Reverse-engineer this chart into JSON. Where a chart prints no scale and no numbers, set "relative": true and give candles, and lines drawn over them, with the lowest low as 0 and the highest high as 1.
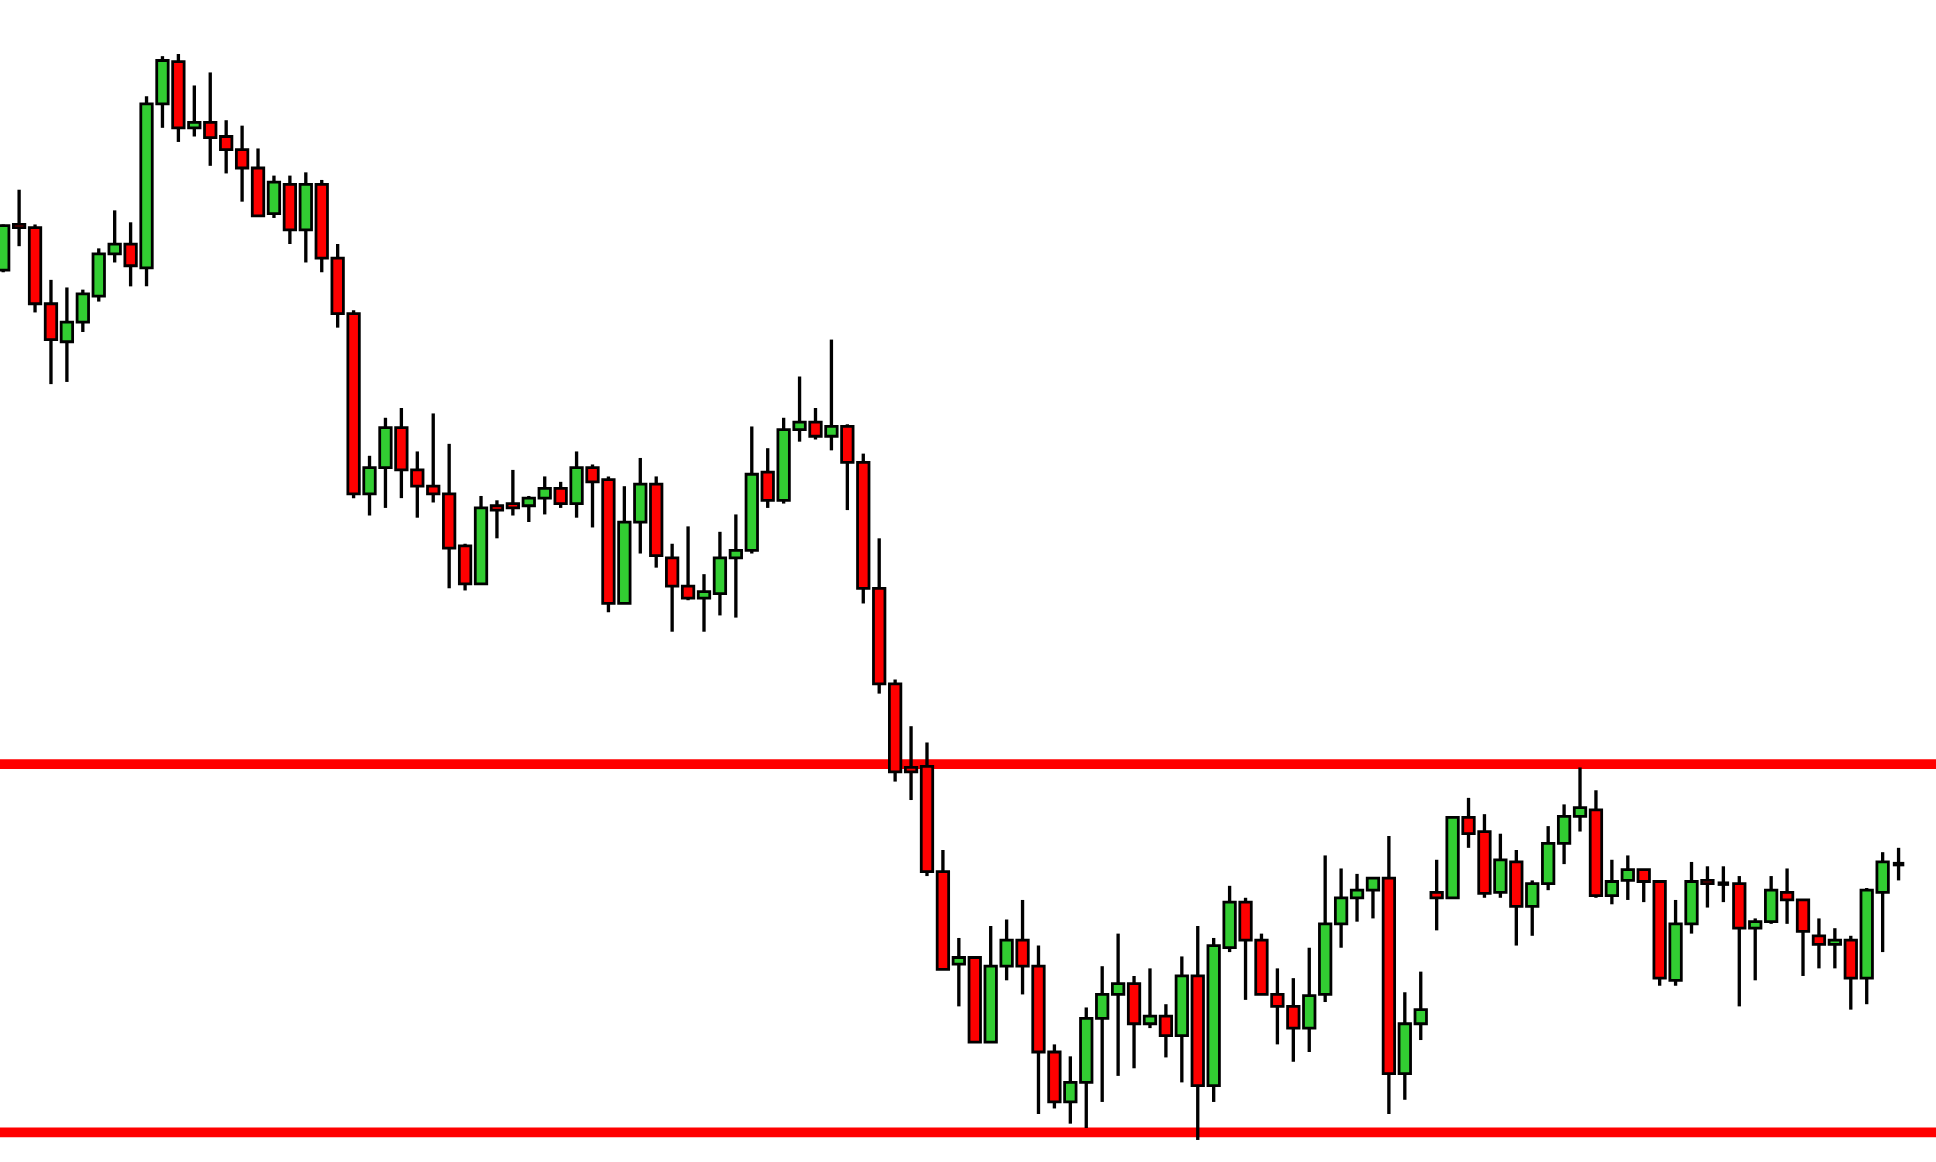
{
  "chart_data": {
    "type": "candlestick",
    "relative": true,
    "categories": [
      null,
      null,
      null,
      null,
      null,
      null,
      null,
      null,
      null,
      null,
      null,
      null,
      null,
      null,
      null,
      null,
      null,
      null,
      null,
      null,
      null,
      null,
      null,
      null,
      null,
      null,
      null,
      null,
      null,
      null,
      null,
      null,
      null,
      null,
      null,
      null,
      null,
      null,
      null,
      null,
      null,
      null,
      null,
      null,
      null,
      null,
      null,
      null,
      null,
      null,
      null,
      null,
      null,
      null,
      null,
      null,
      null,
      null,
      null,
      null,
      null,
      null,
      null,
      null,
      null,
      null,
      null,
      null,
      null,
      null,
      null,
      null,
      null,
      null,
      null,
      null,
      null,
      null,
      null,
      null,
      null,
      null,
      null,
      null,
      null,
      null,
      null,
      null,
      null,
      null,
      null,
      null,
      null,
      null,
      null,
      null,
      null,
      null,
      null,
      null,
      null,
      null,
      null,
      null,
      null,
      null,
      null,
      null,
      null,
      null,
      null,
      null,
      null,
      null,
      null,
      null,
      null,
      null,
      null,
      null
    ],
    "ohlc": [
      [
        0.801,
        0.843,
        0.799,
        0.842
      ],
      [
        0.843,
        0.875,
        0.823,
        0.84
      ],
      [
        0.84,
        0.843,
        0.762,
        0.77
      ],
      [
        0.77,
        0.792,
        0.696,
        0.737
      ],
      [
        0.735,
        0.785,
        0.698,
        0.753
      ],
      [
        0.753,
        0.783,
        0.744,
        0.779
      ],
      [
        0.777,
        0.821,
        0.772,
        0.816
      ],
      [
        0.816,
        0.856,
        0.808,
        0.825
      ],
      [
        0.825,
        0.845,
        0.786,
        0.805
      ],
      [
        0.803,
        0.961,
        0.786,
        0.954
      ],
      [
        0.954,
        0.998,
        0.932,
        0.994
      ],
      [
        0.993,
        1,
        0.919,
        0.932
      ],
      [
        0.932,
        0.971,
        0.924,
        0.937
      ],
      [
        0.937,
        0.983,
        0.897,
        0.923
      ],
      [
        0.924,
        0.939,
        0.89,
        0.912
      ],
      [
        0.912,
        0.934,
        0.864,
        0.895
      ],
      [
        0.895,
        0.913,
        0.851,
        0.851
      ],
      [
        0.853,
        0.888,
        0.849,
        0.882
      ],
      [
        0.88,
        0.888,
        0.825,
        0.838
      ],
      [
        0.838,
        0.891,
        0.808,
        0.88
      ],
      [
        0.88,
        0.884,
        0.799,
        0.812
      ],
      [
        0.812,
        0.825,
        0.748,
        0.761
      ],
      [
        0.761,
        0.764,
        0.591,
        0.595
      ],
      [
        0.595,
        0.63,
        0.575,
        0.619
      ],
      [
        0.619,
        0.665,
        0.582,
        0.656
      ],
      [
        0.656,
        0.674,
        0.591,
        0.617
      ],
      [
        0.617,
        0.634,
        0.573,
        0.602
      ],
      [
        0.602,
        0.669,
        0.587,
        0.595
      ],
      [
        0.595,
        0.641,
        0.508,
        0.545
      ],
      [
        0.547,
        0.549,
        0.506,
        0.512
      ],
      [
        0.512,
        0.593,
        0.512,
        0.582
      ],
      [
        0.584,
        0.589,
        0.554,
        0.58
      ],
      [
        0.586,
        0.617,
        0.575,
        0.582
      ],
      [
        0.584,
        0.593,
        0.569,
        0.591
      ],
      [
        0.591,
        0.611,
        0.576,
        0.6
      ],
      [
        0.6,
        0.606,
        0.582,
        0.586
      ],
      [
        0.586,
        0.634,
        0.573,
        0.619
      ],
      [
        0.619,
        0.622,
        0.564,
        0.606
      ],
      [
        0.608,
        0.611,
        0.486,
        0.494
      ],
      [
        0.494,
        0.602,
        0.494,
        0.569
      ],
      [
        0.569,
        0.628,
        0.54,
        0.604
      ],
      [
        0.604,
        0.611,
        0.527,
        0.538
      ],
      [
        0.536,
        0.549,
        0.468,
        0.51
      ],
      [
        0.51,
        0.565,
        0.497,
        0.499
      ],
      [
        0.499,
        0.521,
        0.468,
        0.505
      ],
      [
        0.503,
        0.56,
        0.483,
        0.536
      ],
      [
        0.536,
        0.576,
        0.481,
        0.543
      ],
      [
        0.543,
        0.657,
        0.54,
        0.613
      ],
      [
        0.615,
        0.637,
        0.582,
        0.589
      ],
      [
        0.589,
        0.665,
        0.586,
        0.654
      ],
      [
        0.654,
        0.703,
        0.643,
        0.661
      ],
      [
        0.661,
        0.674,
        0.645,
        0.648
      ],
      [
        0.648,
        0.737,
        0.635,
        0.657
      ],
      [
        0.657,
        0.659,
        0.58,
        0.624
      ],
      [
        0.624,
        0.632,
        0.494,
        0.508
      ],
      [
        0.508,
        0.554,
        0.411,
        0.42
      ],
      [
        0.42,
        0.424,
        0.33,
        0.339
      ],
      [
        0.343,
        0.381,
        0.313,
        0.339
      ],
      [
        0.344,
        0.366,
        0.243,
        0.247
      ],
      [
        0.247,
        0.267,
        0.157,
        0.157
      ],
      [
        0.162,
        0.186,
        0.123,
        0.168
      ],
      [
        0.168,
        0.169,
        0.09,
        0.09
      ],
      [
        0.09,
        0.197,
        0.09,
        0.16
      ],
      [
        0.16,
        0.203,
        0.147,
        0.184
      ],
      [
        0.184,
        0.221,
        0.134,
        0.16
      ],
      [
        0.16,
        0.179,
        0.024,
        0.081
      ],
      [
        0.081,
        0.088,
        0.029,
        0.035
      ],
      [
        0.035,
        0.077,
        0.015,
        0.053
      ],
      [
        0.053,
        0.122,
        0.011,
        0.112
      ],
      [
        0.112,
        0.16,
        0.035,
        0.134
      ],
      [
        0.134,
        0.19,
        0.059,
        0.144
      ],
      [
        0.144,
        0.151,
        0.066,
        0.107
      ],
      [
        0.107,
        0.158,
        0.103,
        0.114
      ],
      [
        0.114,
        0.125,
        0.076,
        0.096
      ],
      [
        0.096,
        0.169,
        0.053,
        0.151
      ],
      [
        0.151,
        0.197,
        0,
        0.05
      ],
      [
        0.05,
        0.186,
        0.035,
        0.179
      ],
      [
        0.177,
        0.234,
        0.173,
        0.219
      ],
      [
        0.219,
        0.223,
        0.129,
        0.184
      ],
      [
        0.184,
        0.19,
        0.134,
        0.134
      ],
      [
        0.134,
        0.158,
        0.088,
        0.123
      ],
      [
        0.123,
        0.149,
        0.072,
        0.103
      ],
      [
        0.103,
        0.177,
        0.081,
        0.133
      ],
      [
        0.134,
        0.262,
        0.127,
        0.199
      ],
      [
        0.199,
        0.25,
        0.177,
        0.223
      ],
      [
        0.223,
        0.245,
        0.201,
        0.23
      ],
      [
        0.23,
        0.241,
        0.204,
        0.241
      ],
      [
        0.241,
        0.28,
        0.024,
        0.061
      ],
      [
        0.061,
        0.136,
        0.037,
        0.107
      ],
      [
        0.107,
        0.155,
        0.092,
        0.12
      ],
      [
        0.228,
        0.258,
        0.193,
        0.223
      ],
      [
        0.223,
        0.297,
        0.223,
        0.297
      ],
      [
        0.297,
        0.315,
        0.269,
        0.282
      ],
      [
        0.284,
        0.3,
        0.223,
        0.227
      ],
      [
        0.228,
        0.282,
        0.223,
        0.258
      ],
      [
        0.256,
        0.267,
        0.179,
        0.215
      ],
      [
        0.215,
        0.239,
        0.188,
        0.236
      ],
      [
        0.236,
        0.289,
        0.23,
        0.273
      ],
      [
        0.273,
        0.309,
        0.254,
        0.298
      ],
      [
        0.298,
        0.343,
        0.284,
        0.306
      ],
      [
        0.304,
        0.322,
        0.223,
        0.225
      ],
      [
        0.225,
        0.258,
        0.217,
        0.238
      ],
      [
        0.239,
        0.262,
        0.221,
        0.249
      ],
      [
        0.249,
        0.249,
        0.219,
        0.238
      ],
      [
        0.238,
        0.238,
        0.142,
        0.149
      ],
      [
        0.147,
        0.221,
        0.142,
        0.199
      ],
      [
        0.199,
        0.256,
        0.19,
        0.238
      ],
      [
        0.239,
        0.252,
        0.214,
        0.236
      ],
      [
        0.236,
        0.252,
        0.219,
        0.236
      ],
      [
        0.236,
        0.243,
        0.123,
        0.195
      ],
      [
        0.195,
        0.204,
        0.147,
        0.201
      ],
      [
        0.201,
        0.243,
        0.199,
        0.23
      ],
      [
        0.228,
        0.25,
        0.199,
        0.221
      ],
      [
        0.221,
        0.221,
        0.151,
        0.192
      ],
      [
        0.188,
        0.204,
        0.158,
        0.18
      ],
      [
        0.18,
        0.195,
        0.158,
        0.184
      ],
      [
        0.184,
        0.188,
        0.12,
        0.149
      ],
      [
        0.149,
        0.232,
        0.125,
        0.23
      ],
      [
        0.228,
        0.265,
        0.173,
        0.256
      ],
      [
        0.254,
        0.269,
        0.239,
        0.254
      ]
    ],
    "colors": [
      "#32cd32",
      "#ff0000",
      "#ff0000",
      "#ff0000",
      "#32cd32",
      "#32cd32",
      "#32cd32",
      "#32cd32",
      "#ff0000",
      "#32cd32",
      "#32cd32",
      "#ff0000",
      "#32cd32",
      "#ff0000",
      "#ff0000",
      "#ff0000",
      "#ff0000",
      "#32cd32",
      "#ff0000",
      "#32cd32",
      "#ff0000",
      "#ff0000",
      "#ff0000",
      "#32cd32",
      "#32cd32",
      "#ff0000",
      "#ff0000",
      "#ff0000",
      "#ff0000",
      "#ff0000",
      "#32cd32",
      "#ff0000",
      "#ff0000",
      "#32cd32",
      "#32cd32",
      "#ff0000",
      "#32cd32",
      "#ff0000",
      "#ff0000",
      "#32cd32",
      "#32cd32",
      "#ff0000",
      "#ff0000",
      "#ff0000",
      "#32cd32",
      "#32cd32",
      "#32cd32",
      "#32cd32",
      "#ff0000",
      "#32cd32",
      "#32cd32",
      "#ff0000",
      "#32cd32",
      "#ff0000",
      "#ff0000",
      "#ff0000",
      "#ff0000",
      "#ff0000",
      "#ff0000",
      "#ff0000",
      "#32cd32",
      "#ff0000",
      "#32cd32",
      "#32cd32",
      "#ff0000",
      "#ff0000",
      "#ff0000",
      "#32cd32",
      "#32cd32",
      "#32cd32",
      "#32cd32",
      "#ff0000",
      "#32cd32",
      "#ff0000",
      "#32cd32",
      "#ff0000",
      "#32cd32",
      "#32cd32",
      "#ff0000",
      "#ff0000",
      "#ff0000",
      "#ff0000",
      "#32cd32",
      "#32cd32",
      "#32cd32",
      "#32cd32",
      "#32cd32",
      "#ff0000",
      "#32cd32",
      "#32cd32",
      "#ff0000",
      "#32cd32",
      "#ff0000",
      "#ff0000",
      "#32cd32",
      "#ff0000",
      "#32cd32",
      "#32cd32",
      "#32cd32",
      "#32cd32",
      "#ff0000",
      "#32cd32",
      "#32cd32",
      "#ff0000",
      "#ff0000",
      "#32cd32",
      "#32cd32",
      "#ff0000",
      "#000000",
      "#ff0000",
      "#32cd32",
      "#32cd32",
      "#ff0000",
      "#ff0000",
      "#ff0000",
      "#32cd32",
      "#ff0000",
      "#32cd32",
      "#32cd32",
      "#000000"
    ],
    "ref_lines": [
      {
        "axis": "y",
        "value": 0.346,
        "color": "#ff0000",
        "line_style": "solid"
      },
      {
        "axis": "y",
        "value": 0.007,
        "color": "#ff0000",
        "line_style": "solid"
      }
    ],
    "legend": false
  }
}
